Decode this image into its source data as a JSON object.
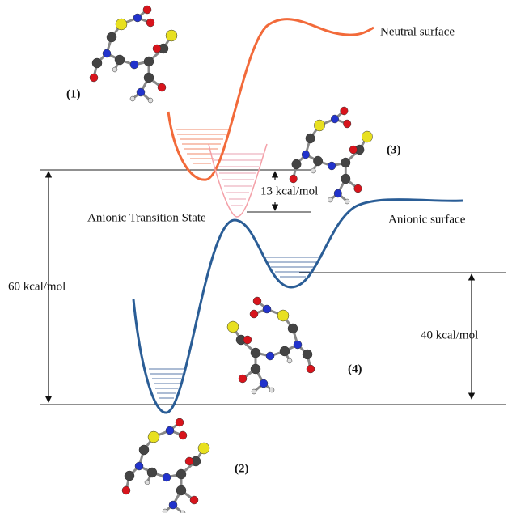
{
  "labels": {
    "neutral_surface": "Neutral surface",
    "anionic_surface": "Anionic surface",
    "transition_state": "Anionic Transition State",
    "barrier": "13 kcal/mol",
    "total": "60 kcal/mol",
    "anion_gap": "40 kcal/mol"
  },
  "structures": [
    "(1)",
    "(2)",
    "(3)",
    "(4)"
  ]
}
